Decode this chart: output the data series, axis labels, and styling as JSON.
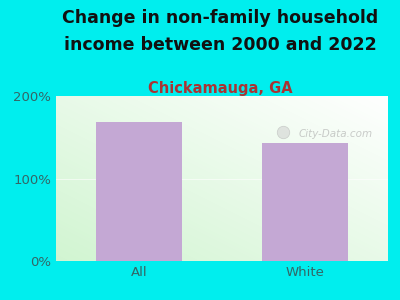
{
  "title_line1": "Change in non-family household",
  "title_line2": "income between 2000 and 2022",
  "subtitle": "Chickamauga, GA",
  "categories": [
    "All",
    "White"
  ],
  "values": [
    168,
    143
  ],
  "bar_color": "#C4A8D4",
  "background_color": "#00EEEE",
  "ylim": [
    0,
    200
  ],
  "yticks": [
    0,
    100,
    200
  ],
  "ytick_labels": [
    "0%",
    "100%",
    "200%"
  ],
  "title_fontsize": 12.5,
  "subtitle_fontsize": 10.5,
  "subtitle_color": "#AA3333",
  "tick_color": "#336666",
  "watermark": "City-Data.com",
  "bar_width": 0.52
}
